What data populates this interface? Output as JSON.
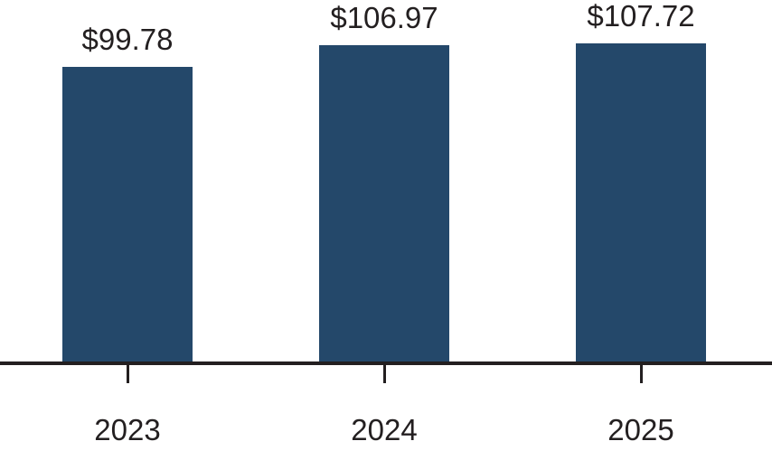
{
  "chart_data": {
    "type": "bar",
    "title": "",
    "xlabel": "",
    "ylabel": "",
    "categories": [
      "2023",
      "2024",
      "2025"
    ],
    "values": [
      99.78,
      106.97,
      107.72
    ],
    "value_labels": [
      "$99.78",
      "$106.97",
      "$107.72"
    ],
    "series_name": "",
    "legend": "none",
    "grid": false,
    "y_axis_visible": false,
    "x_axis_visible": true,
    "bar_color": "#24486A",
    "axis_color": "#231F20",
    "label_color": "#231F20"
  }
}
